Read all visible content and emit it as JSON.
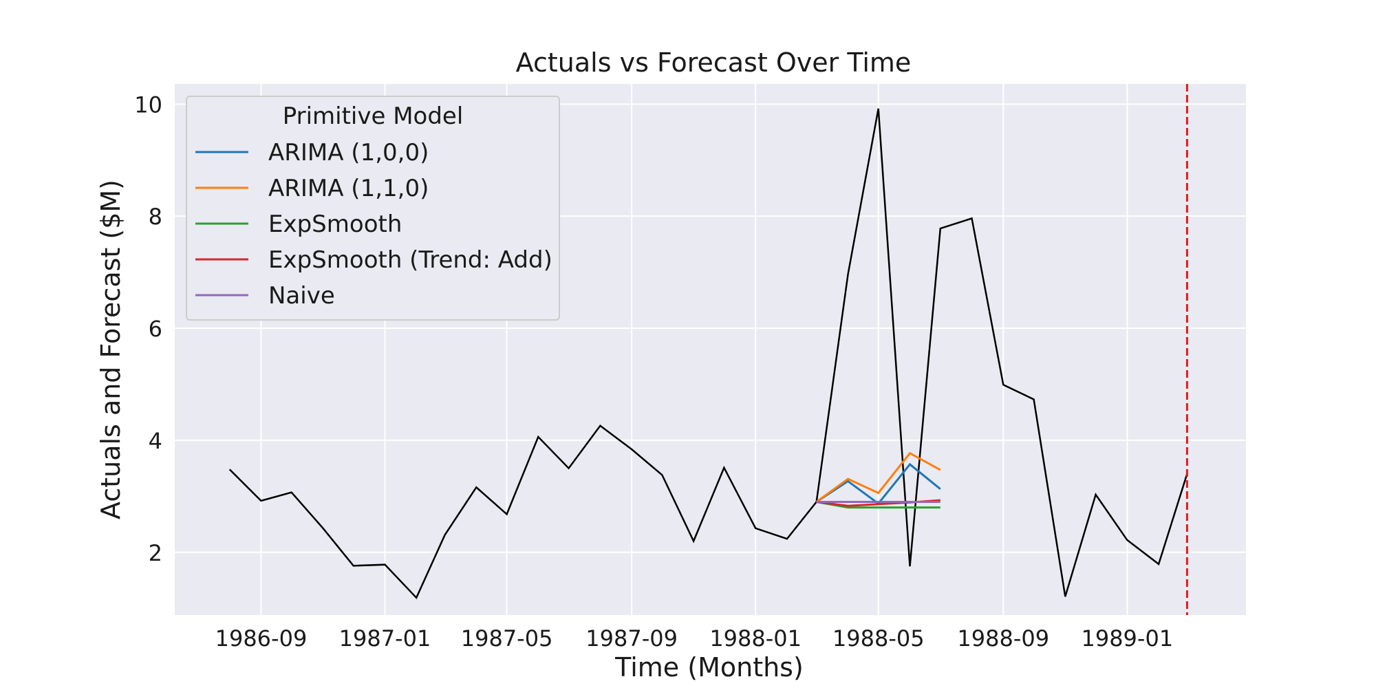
{
  "chart_data": {
    "type": "line",
    "title": "Actuals vs Forecast Over Time",
    "xlabel": "Time (Months)",
    "ylabel": "Actuals and Forecast ($M)",
    "x_ticks": [
      "1986-09",
      "1987-01",
      "1987-05",
      "1987-09",
      "1988-01",
      "1988-05",
      "1988-09",
      "1989-01"
    ],
    "y_ticks": [
      2,
      4,
      6,
      8,
      10
    ],
    "xlim": [
      "1986-06-08",
      "1989-04-28"
    ],
    "ylim": [
      0.88,
      10.36
    ],
    "grid": true,
    "legend": {
      "title": "Primitive Model",
      "placement": "upper-left"
    },
    "actuals": {
      "color": "#000000",
      "x": [
        "1986-08",
        "1986-09",
        "1986-10",
        "1986-11",
        "1986-12",
        "1987-01",
        "1987-02",
        "1987-03",
        "1987-04",
        "1987-05",
        "1987-06",
        "1987-07",
        "1987-08",
        "1987-09",
        "1987-10",
        "1987-11",
        "1987-12",
        "1988-01",
        "1988-02",
        "1988-03",
        "1988-04",
        "1988-05",
        "1988-06",
        "1988-07",
        "1988-08",
        "1988-09",
        "1988-10",
        "1988-11",
        "1988-12",
        "1989-01",
        "1989-02",
        "1989-03"
      ],
      "values": [
        3.48,
        2.92,
        3.07,
        2.43,
        1.76,
        1.78,
        1.19,
        2.31,
        3.16,
        2.68,
        4.06,
        3.5,
        4.26,
        3.84,
        3.38,
        2.2,
        3.51,
        2.43,
        2.24,
        2.9,
        6.96,
        9.92,
        1.75,
        7.78,
        7.96,
        4.99,
        4.73,
        1.21,
        3.03,
        2.22,
        1.79,
        3.4
      ]
    },
    "forecast_x": [
      "1988-03",
      "1988-04",
      "1988-05",
      "1988-06",
      "1988-07"
    ],
    "series": [
      {
        "name": "ARIMA (1,0,0)",
        "color": "#1f77b4",
        "values": [
          2.9,
          3.27,
          2.87,
          3.57,
          3.13
        ]
      },
      {
        "name": "ARIMA (1,1,0)",
        "color": "#ff7f0e",
        "values": [
          2.9,
          3.31,
          3.06,
          3.77,
          3.47
        ]
      },
      {
        "name": "ExpSmooth",
        "color": "#2ca02c",
        "values": [
          2.9,
          2.8,
          2.8,
          2.8,
          2.8
        ]
      },
      {
        "name": "ExpSmooth (Trend: Add)",
        "color": "#d62728",
        "values": [
          2.9,
          2.83,
          2.86,
          2.89,
          2.93
        ]
      },
      {
        "name": "Naive",
        "color": "#9467bd",
        "values": [
          2.9,
          2.9,
          2.9,
          2.9,
          2.9
        ]
      }
    ],
    "vline": {
      "x": "1989-03",
      "color": "#e31a1c",
      "style": "dashed"
    }
  }
}
